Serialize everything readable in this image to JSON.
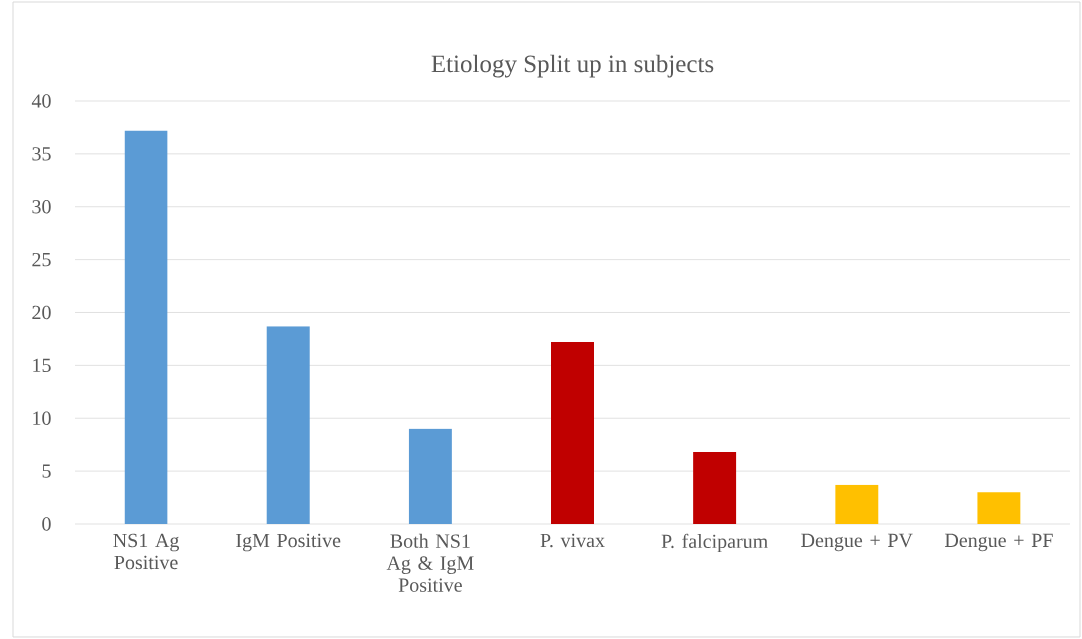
{
  "chart_data": {
    "type": "bar",
    "title": "Etiology Split up in subjects",
    "categories": [
      "NS1 Ag Positive",
      "IgM Positive",
      "Both NS1 Ag & IgM Positive",
      "P. vivax",
      "P. falciparum",
      "Dengue + PV",
      "Dengue + PF"
    ],
    "values": [
      37.2,
      18.7,
      9.0,
      17.2,
      6.8,
      3.7,
      3.0
    ],
    "colors": [
      "#5b9bd5",
      "#5b9bd5",
      "#5b9bd5",
      "#c00000",
      "#c00000",
      "#ffc000",
      "#ffc000"
    ],
    "ylim": [
      0,
      40
    ],
    "yticks": [
      0,
      5,
      10,
      15,
      20,
      25,
      30,
      35,
      40
    ],
    "grid": "y"
  }
}
